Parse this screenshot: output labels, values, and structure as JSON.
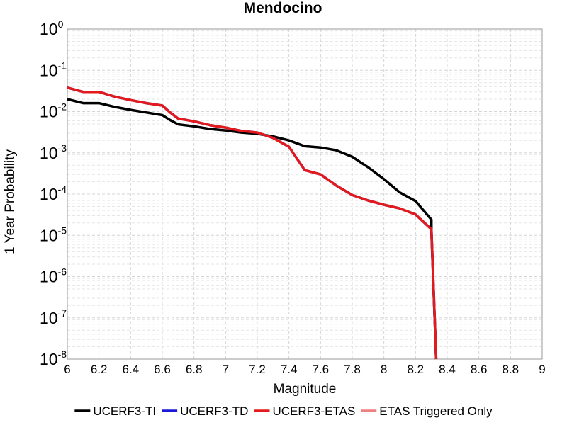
{
  "chart_data": {
    "type": "line",
    "title": "Mendocino",
    "xlabel": "Magnitude",
    "ylabel": "1 Year Probability",
    "xlim": [
      6,
      9
    ],
    "ylim": [
      1e-08,
      1
    ],
    "y_scale": "log",
    "grid": true,
    "legend_position": "bottom",
    "x_ticks": [
      "6",
      "6.2",
      "6.4",
      "6.6",
      "6.8",
      "7",
      "7.2",
      "7.4",
      "7.6",
      "7.8",
      "8",
      "8.2",
      "8.4",
      "8.6",
      "8.8",
      "9"
    ],
    "y_ticks": [
      {
        "base": "10",
        "exp": "0"
      },
      {
        "base": "10",
        "exp": "-1"
      },
      {
        "base": "10",
        "exp": "-2"
      },
      {
        "base": "10",
        "exp": "-3"
      },
      {
        "base": "10",
        "exp": "-4"
      },
      {
        "base": "10",
        "exp": "-5"
      },
      {
        "base": "10",
        "exp": "-6"
      },
      {
        "base": "10",
        "exp": "-7"
      },
      {
        "base": "10",
        "exp": "-8"
      }
    ],
    "series": [
      {
        "name": "UCERF3-TI",
        "color": "#000000",
        "points": [
          [
            6.0,
            0.02
          ],
          [
            6.1,
            0.016
          ],
          [
            6.2,
            0.016
          ],
          [
            6.3,
            0.013
          ],
          [
            6.4,
            0.011
          ],
          [
            6.5,
            0.0095
          ],
          [
            6.6,
            0.0082
          ],
          [
            6.65,
            0.0062
          ],
          [
            6.7,
            0.0049
          ],
          [
            6.8,
            0.0044
          ],
          [
            6.9,
            0.0038
          ],
          [
            7.0,
            0.0035
          ],
          [
            7.1,
            0.0031
          ],
          [
            7.2,
            0.0029
          ],
          [
            7.3,
            0.0025
          ],
          [
            7.4,
            0.002
          ],
          [
            7.5,
            0.00145
          ],
          [
            7.6,
            0.00135
          ],
          [
            7.7,
            0.00115
          ],
          [
            7.8,
            0.0008
          ],
          [
            7.9,
            0.00045
          ],
          [
            8.0,
            0.00023
          ],
          [
            8.1,
            0.00011
          ],
          [
            8.2,
            6.8e-05
          ],
          [
            8.3,
            2.4e-05
          ],
          [
            8.3,
            1.2e-05
          ],
          [
            8.33,
            1e-08
          ]
        ]
      },
      {
        "name": "UCERF3-TD",
        "color": "#1a1ad6",
        "points": [
          [
            6.0,
            0.038
          ],
          [
            6.1,
            0.03
          ],
          [
            6.2,
            0.03
          ],
          [
            6.3,
            0.023
          ],
          [
            6.4,
            0.019
          ],
          [
            6.5,
            0.016
          ],
          [
            6.6,
            0.014
          ],
          [
            6.65,
            0.0095
          ],
          [
            6.7,
            0.0068
          ],
          [
            6.8,
            0.0058
          ],
          [
            6.9,
            0.0047
          ],
          [
            7.0,
            0.0041
          ],
          [
            7.1,
            0.0034
          ],
          [
            7.2,
            0.0031
          ],
          [
            7.3,
            0.0023
          ],
          [
            7.4,
            0.0014
          ],
          [
            7.5,
            0.00038
          ],
          [
            7.6,
            0.0003
          ],
          [
            7.7,
            0.00016
          ],
          [
            7.8,
            9.5e-05
          ],
          [
            7.9,
            7e-05
          ],
          [
            8.0,
            5.5e-05
          ],
          [
            8.1,
            4.5e-05
          ],
          [
            8.2,
            3.2e-05
          ],
          [
            8.3,
            1.4e-05
          ],
          [
            8.33,
            1e-08
          ]
        ]
      },
      {
        "name": "UCERF3-ETAS",
        "color": "#e31a1c",
        "points": [
          [
            6.0,
            0.038
          ],
          [
            6.1,
            0.03
          ],
          [
            6.2,
            0.03
          ],
          [
            6.3,
            0.023
          ],
          [
            6.4,
            0.019
          ],
          [
            6.5,
            0.016
          ],
          [
            6.6,
            0.014
          ],
          [
            6.65,
            0.0095
          ],
          [
            6.7,
            0.0068
          ],
          [
            6.8,
            0.0058
          ],
          [
            6.9,
            0.0047
          ],
          [
            7.0,
            0.0041
          ],
          [
            7.1,
            0.0034
          ],
          [
            7.2,
            0.0031
          ],
          [
            7.3,
            0.0023
          ],
          [
            7.4,
            0.0014
          ],
          [
            7.5,
            0.00038
          ],
          [
            7.6,
            0.0003
          ],
          [
            7.7,
            0.00016
          ],
          [
            7.8,
            9.5e-05
          ],
          [
            7.9,
            7e-05
          ],
          [
            8.0,
            5.5e-05
          ],
          [
            8.1,
            4.5e-05
          ],
          [
            8.2,
            3.2e-05
          ],
          [
            8.3,
            1.4e-05
          ],
          [
            8.33,
            1e-08
          ]
        ]
      },
      {
        "name": "ETAS Triggered Only",
        "color": "#f08080",
        "points": []
      }
    ]
  }
}
